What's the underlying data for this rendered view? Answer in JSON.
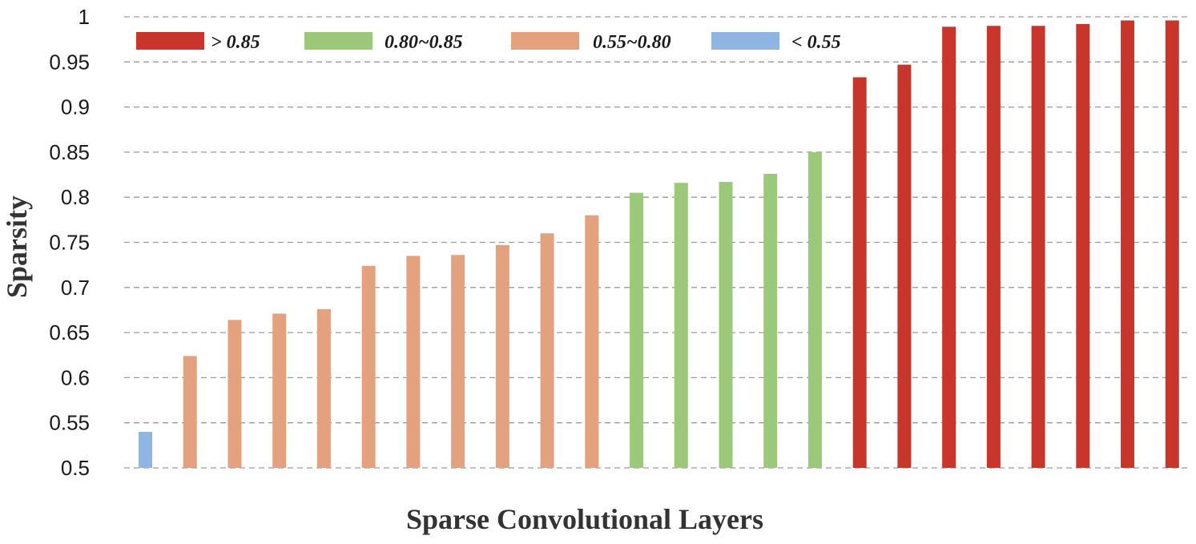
{
  "chart_data": {
    "type": "bar",
    "xlabel": "Sparse Convolutional Layers",
    "ylabel": "Sparsity",
    "ylim": [
      0.5,
      1.0
    ],
    "y_ticks": [
      "0.5",
      "0.55",
      "0.6",
      "0.65",
      "0.7",
      "0.75",
      "0.8",
      "0.85",
      "0.9",
      "0.95",
      "1"
    ],
    "grid": true,
    "legend_position": "top-left",
    "legend": [
      {
        "label": "> 0.85",
        "color": "#c8352b"
      },
      {
        "label": "0.80~0.85",
        "color": "#9cc87a"
      },
      {
        "label": "0.55~0.80",
        "color": "#e4a17e"
      },
      {
        "label": "< 0.55",
        "color": "#8fb6e2"
      }
    ],
    "values": [
      0.54,
      0.624,
      0.664,
      0.671,
      0.676,
      0.724,
      0.735,
      0.736,
      0.747,
      0.76,
      0.78,
      0.805,
      0.816,
      0.817,
      0.826,
      0.85,
      0.933,
      0.947,
      0.989,
      0.99,
      0.99,
      0.992,
      0.996,
      0.996
    ],
    "colors": [
      "#8fb6e2",
      "#e4a17e",
      "#e4a17e",
      "#e4a17e",
      "#e4a17e",
      "#e4a17e",
      "#e4a17e",
      "#e4a17e",
      "#e4a17e",
      "#e4a17e",
      "#e4a17e",
      "#9cc87a",
      "#9cc87a",
      "#9cc87a",
      "#9cc87a",
      "#9cc87a",
      "#c8352b",
      "#c8352b",
      "#c8352b",
      "#c8352b",
      "#c8352b",
      "#c8352b",
      "#c8352b",
      "#c8352b"
    ]
  }
}
